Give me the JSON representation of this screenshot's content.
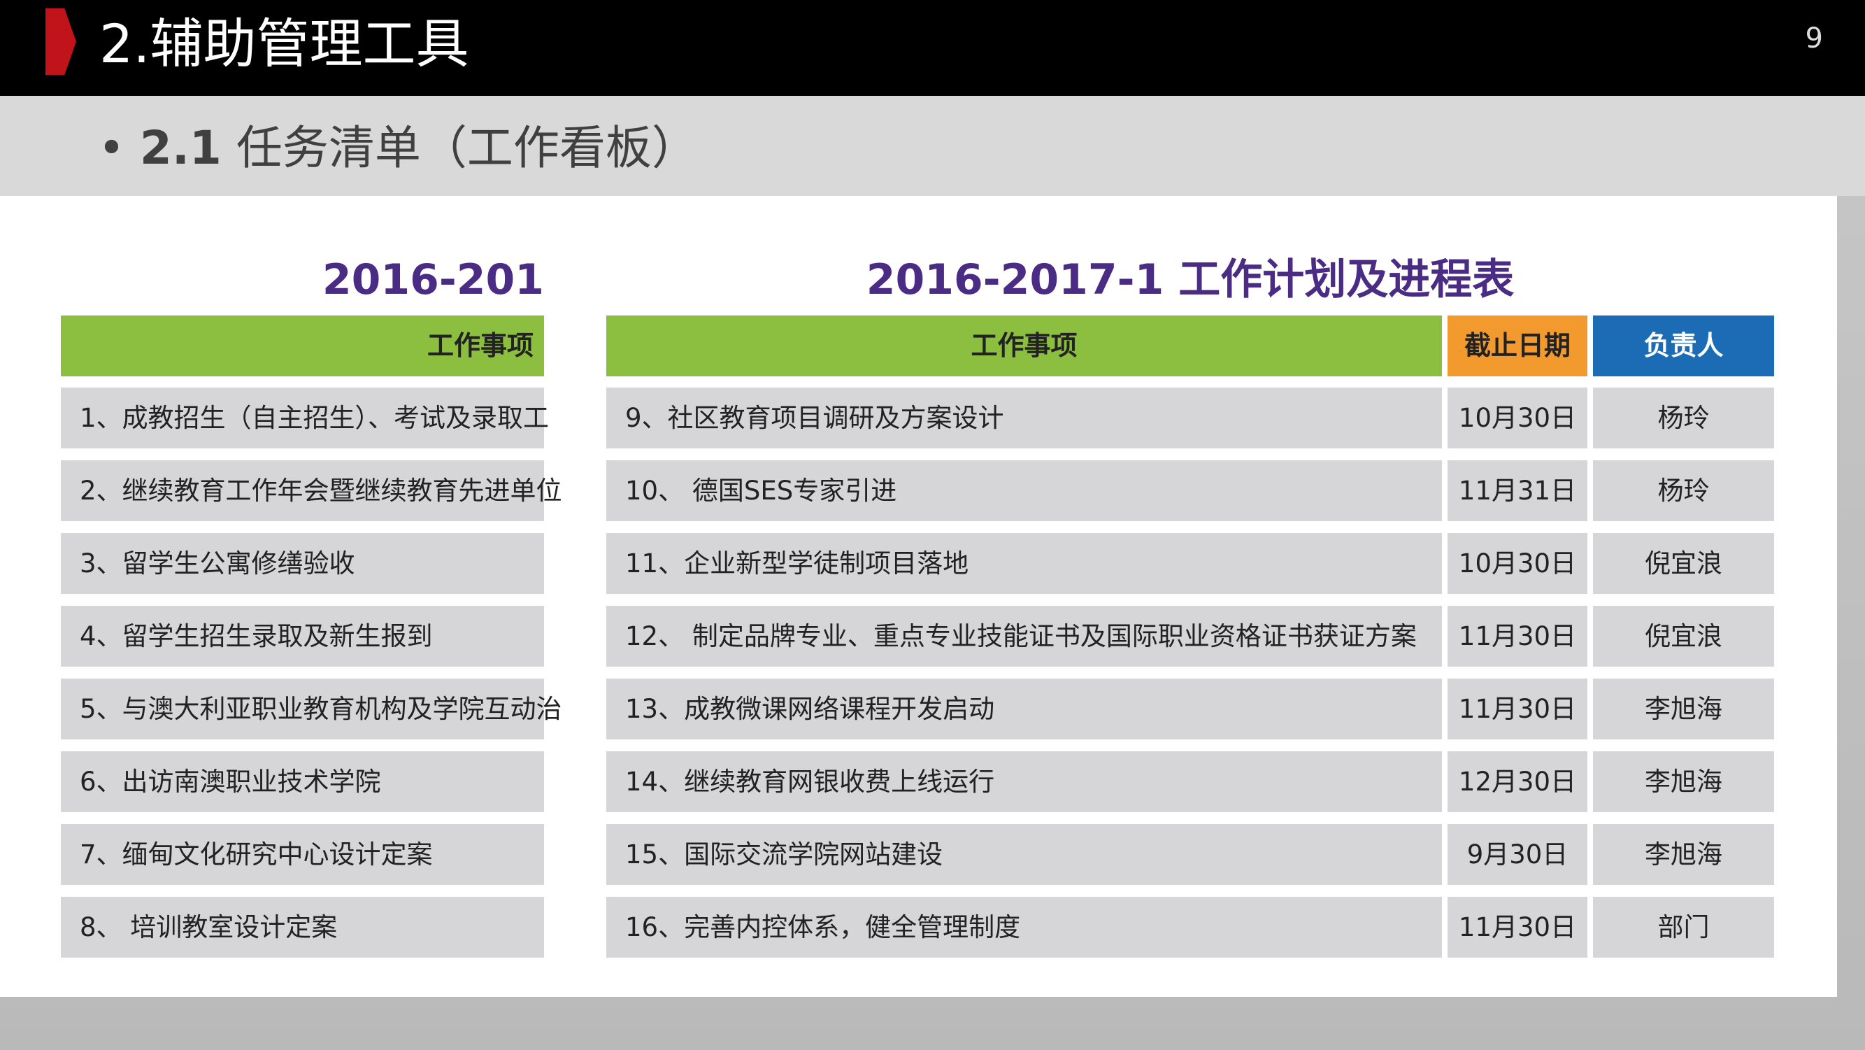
{
  "header": {
    "title": "2.辅助管理工具",
    "page_number": "9"
  },
  "subtitle": {
    "number": "2.1",
    "text": "任务清单（工作看板）"
  },
  "left_table": {
    "title": "2016-201",
    "column": "工作事项",
    "rows": [
      "1、成教招生（自主招生）、考试及录取工",
      "2、继续教育工作年会暨继续教育先进单位",
      "3、留学生公寓修缮验收",
      "4、留学生招生录取及新生报到",
      "5、与澳大利亚职业教育机构及学院互动治",
      "6、出访南澳职业技术学院",
      "7、缅甸文化研究中心设计定案",
      "8、 培训教室设计定案"
    ]
  },
  "right_table": {
    "title": "2016-2017-1 工作计划及进程表",
    "columns": [
      "工作事项",
      "截止日期",
      "负责人"
    ],
    "header_colors": [
      "#8cbf3f",
      "#f39a2e",
      "#1b6bb5"
    ],
    "rows": [
      [
        "9、社区教育项目调研及方案设计",
        "10月30日",
        "杨玲"
      ],
      [
        "10、 德国SES专家引进",
        "11月31日",
        "杨玲"
      ],
      [
        "11、企业新型学徒制项目落地",
        "10月30日",
        "倪宜浪"
      ],
      [
        "12、 制定品牌专业、重点专业技能证书及国际职业资格证书获证方案",
        "11月30日",
        "倪宜浪"
      ],
      [
        "13、成教微课网络课程开发启动",
        "11月30日",
        "李旭海"
      ],
      [
        "14、继续教育网银收费上线运行",
        "12月30日",
        "李旭海"
      ],
      [
        "15、国际交流学院网站建设",
        "9月30日",
        "李旭海"
      ],
      [
        "16、完善内控体系，健全管理制度",
        "11月30日",
        "部门"
      ]
    ]
  }
}
